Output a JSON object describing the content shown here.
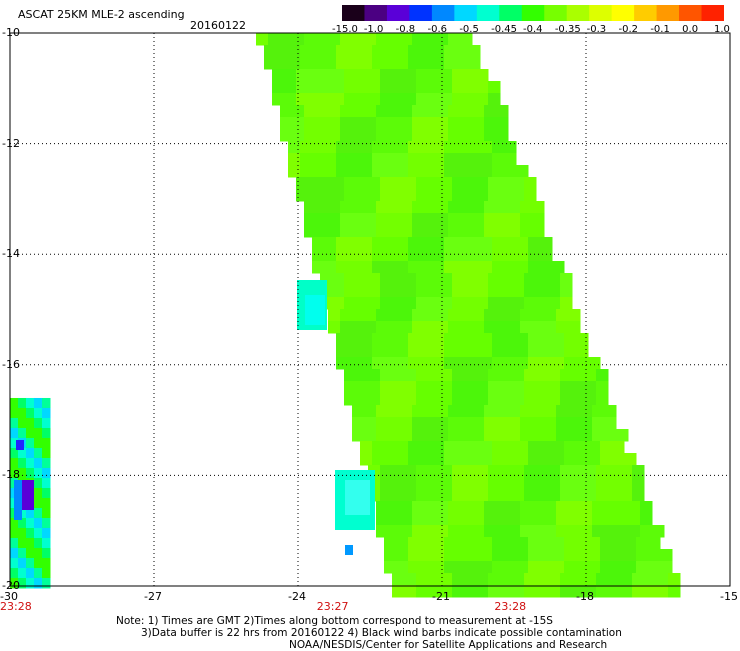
{
  "title": "ASCAT 25KM MLE-2 ascending",
  "date": "20160122",
  "colorbar": {
    "colors": [
      "#1a001a",
      "#4b0082",
      "#5a00d8",
      "#0033ff",
      "#0088ff",
      "#00d8ff",
      "#00ffd0",
      "#00ff66",
      "#33ff00",
      "#77ff00",
      "#aaff00",
      "#ddff00",
      "#ffff00",
      "#ffcc00",
      "#ff9900",
      "#ff5500",
      "#ff2200"
    ],
    "labels": [
      "-15.0",
      "-1.0",
      "-0.8",
      "-0.6",
      "-0.5",
      "-0.45",
      "-0.4",
      "-0.35",
      "-0.3",
      "-0.2",
      "-0.1",
      "0.0",
      "1.0"
    ]
  },
  "axes": {
    "lon_ticks": [
      "-30",
      "-27",
      "-24",
      "-21",
      "-18",
      "-15"
    ],
    "lat_ticks": [
      "-10",
      "-12",
      "-14",
      "-16",
      "-18",
      "-20"
    ],
    "lon_range": [
      -30,
      -15
    ],
    "lat_range": [
      -10,
      -20
    ]
  },
  "times": [
    {
      "label": "23:28",
      "lon": -30
    },
    {
      "label": "23:27",
      "lon": -23.4
    },
    {
      "label": "23:28",
      "lon": -19.7
    }
  ],
  "notes": [
    "Note: 1) Times are GMT 2)Times along bottom correspond to measurement at -15S",
    "3)Data buffer is 22 hrs from 20160122 4) Black wind barbs indicate possible contamination",
    "NOAA/NESDIS/Center for Satellite Applications and Research"
  ],
  "swath": {
    "main_color": "#66ff00",
    "left_edge_lat_lon": [
      [
        -10,
        -24.8
      ],
      [
        -20,
        -22.0
      ]
    ],
    "right_edge_lat_lon": [
      [
        -10,
        -20.4
      ],
      [
        -20,
        -16.1
      ]
    ],
    "left_strip_lon_range": [
      -30,
      -29.3
    ],
    "left_strip_lat_range": [
      -16.6,
      -20
    ]
  }
}
